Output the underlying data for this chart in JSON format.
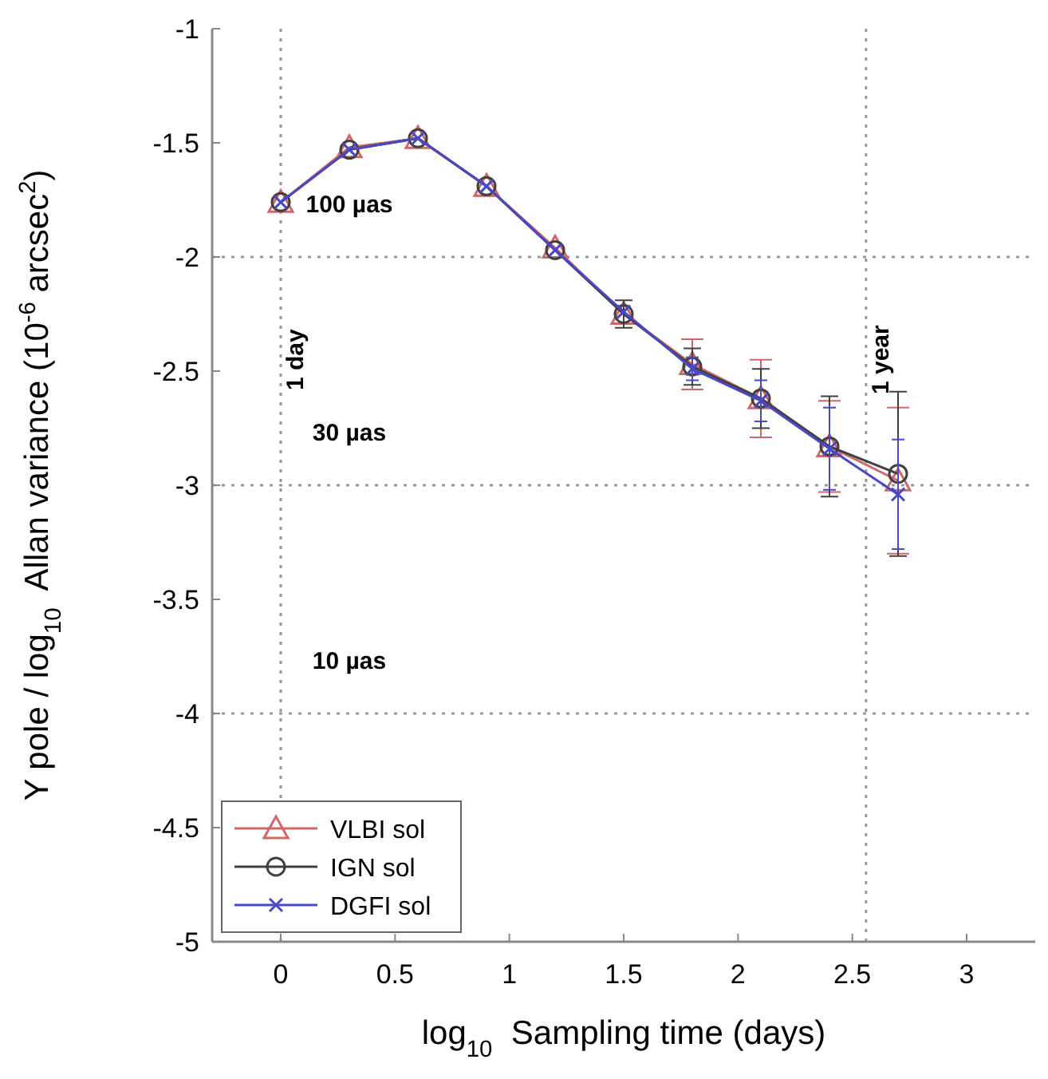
{
  "chart_data": {
    "type": "line",
    "xlabel": "log$_{10}$  Sampling time (days)",
    "ylabel": "Y pole / log$_{10}$  Allan variance (10$^{-6}$ arcsec$^{2}$)",
    "x": [
      0,
      0.3,
      0.6,
      0.9,
      1.2,
      1.5,
      1.8,
      2.1,
      2.4,
      2.7
    ],
    "xlim": [
      -0.3,
      3.3
    ],
    "xticks": [
      0,
      0.5,
      1,
      1.5,
      2,
      2.5,
      3
    ],
    "ylim": [
      -5,
      -1
    ],
    "yticks": [
      -5,
      -4.5,
      -4,
      -3.5,
      -3,
      -2.5,
      -2,
      -1.5,
      -1
    ],
    "grid": false,
    "legend": "bottom left",
    "line_style": "solid",
    "series": [
      {
        "name": "VLBI sol",
        "color": "#d06868",
        "marker": "triangle",
        "values": [
          -1.76,
          -1.52,
          -1.48,
          -1.69,
          -1.96,
          -2.25,
          -2.47,
          -2.62,
          -2.83,
          -2.98
        ],
        "errors": [
          null,
          null,
          null,
          null,
          null,
          null,
          0.11,
          0.17,
          0.2,
          0.32
        ]
      },
      {
        "name": "IGN sol",
        "color": "#404040",
        "marker": "circle",
        "values": [
          -1.76,
          -1.53,
          -1.48,
          -1.69,
          -1.97,
          -2.25,
          -2.48,
          -2.62,
          -2.83,
          -2.95
        ],
        "errors": [
          null,
          null,
          null,
          null,
          null,
          0.06,
          0.08,
          0.13,
          0.22,
          0.36
        ]
      },
      {
        "name": "DGFI sol",
        "color": "#4848c8",
        "marker": "cross",
        "values": [
          -1.76,
          -1.53,
          -1.48,
          -1.69,
          -1.97,
          -2.24,
          -2.49,
          -2.63,
          -2.84,
          -3.04
        ],
        "errors": [
          null,
          null,
          null,
          null,
          null,
          null,
          0.05,
          0.09,
          0.18,
          0.24
        ]
      }
    ],
    "ref_lines": [
      {
        "axis": "x",
        "value": 0,
        "label": "1 day",
        "line_style": "dotted",
        "color": "#999999"
      },
      {
        "axis": "x",
        "value": 2.56,
        "label": "1 year",
        "line_style": "dotted",
        "color": "#999999"
      },
      {
        "axis": "y",
        "value": -2,
        "label": "100 µas",
        "line_style": "dotted",
        "color": "#999999"
      },
      {
        "axis": "y",
        "value": -3,
        "label": "30 µas",
        "line_style": "dotted",
        "color": "#999999"
      },
      {
        "axis": "y",
        "value": -4,
        "label": "10 µas",
        "line_style": "dotted",
        "color": "#999999"
      }
    ]
  }
}
